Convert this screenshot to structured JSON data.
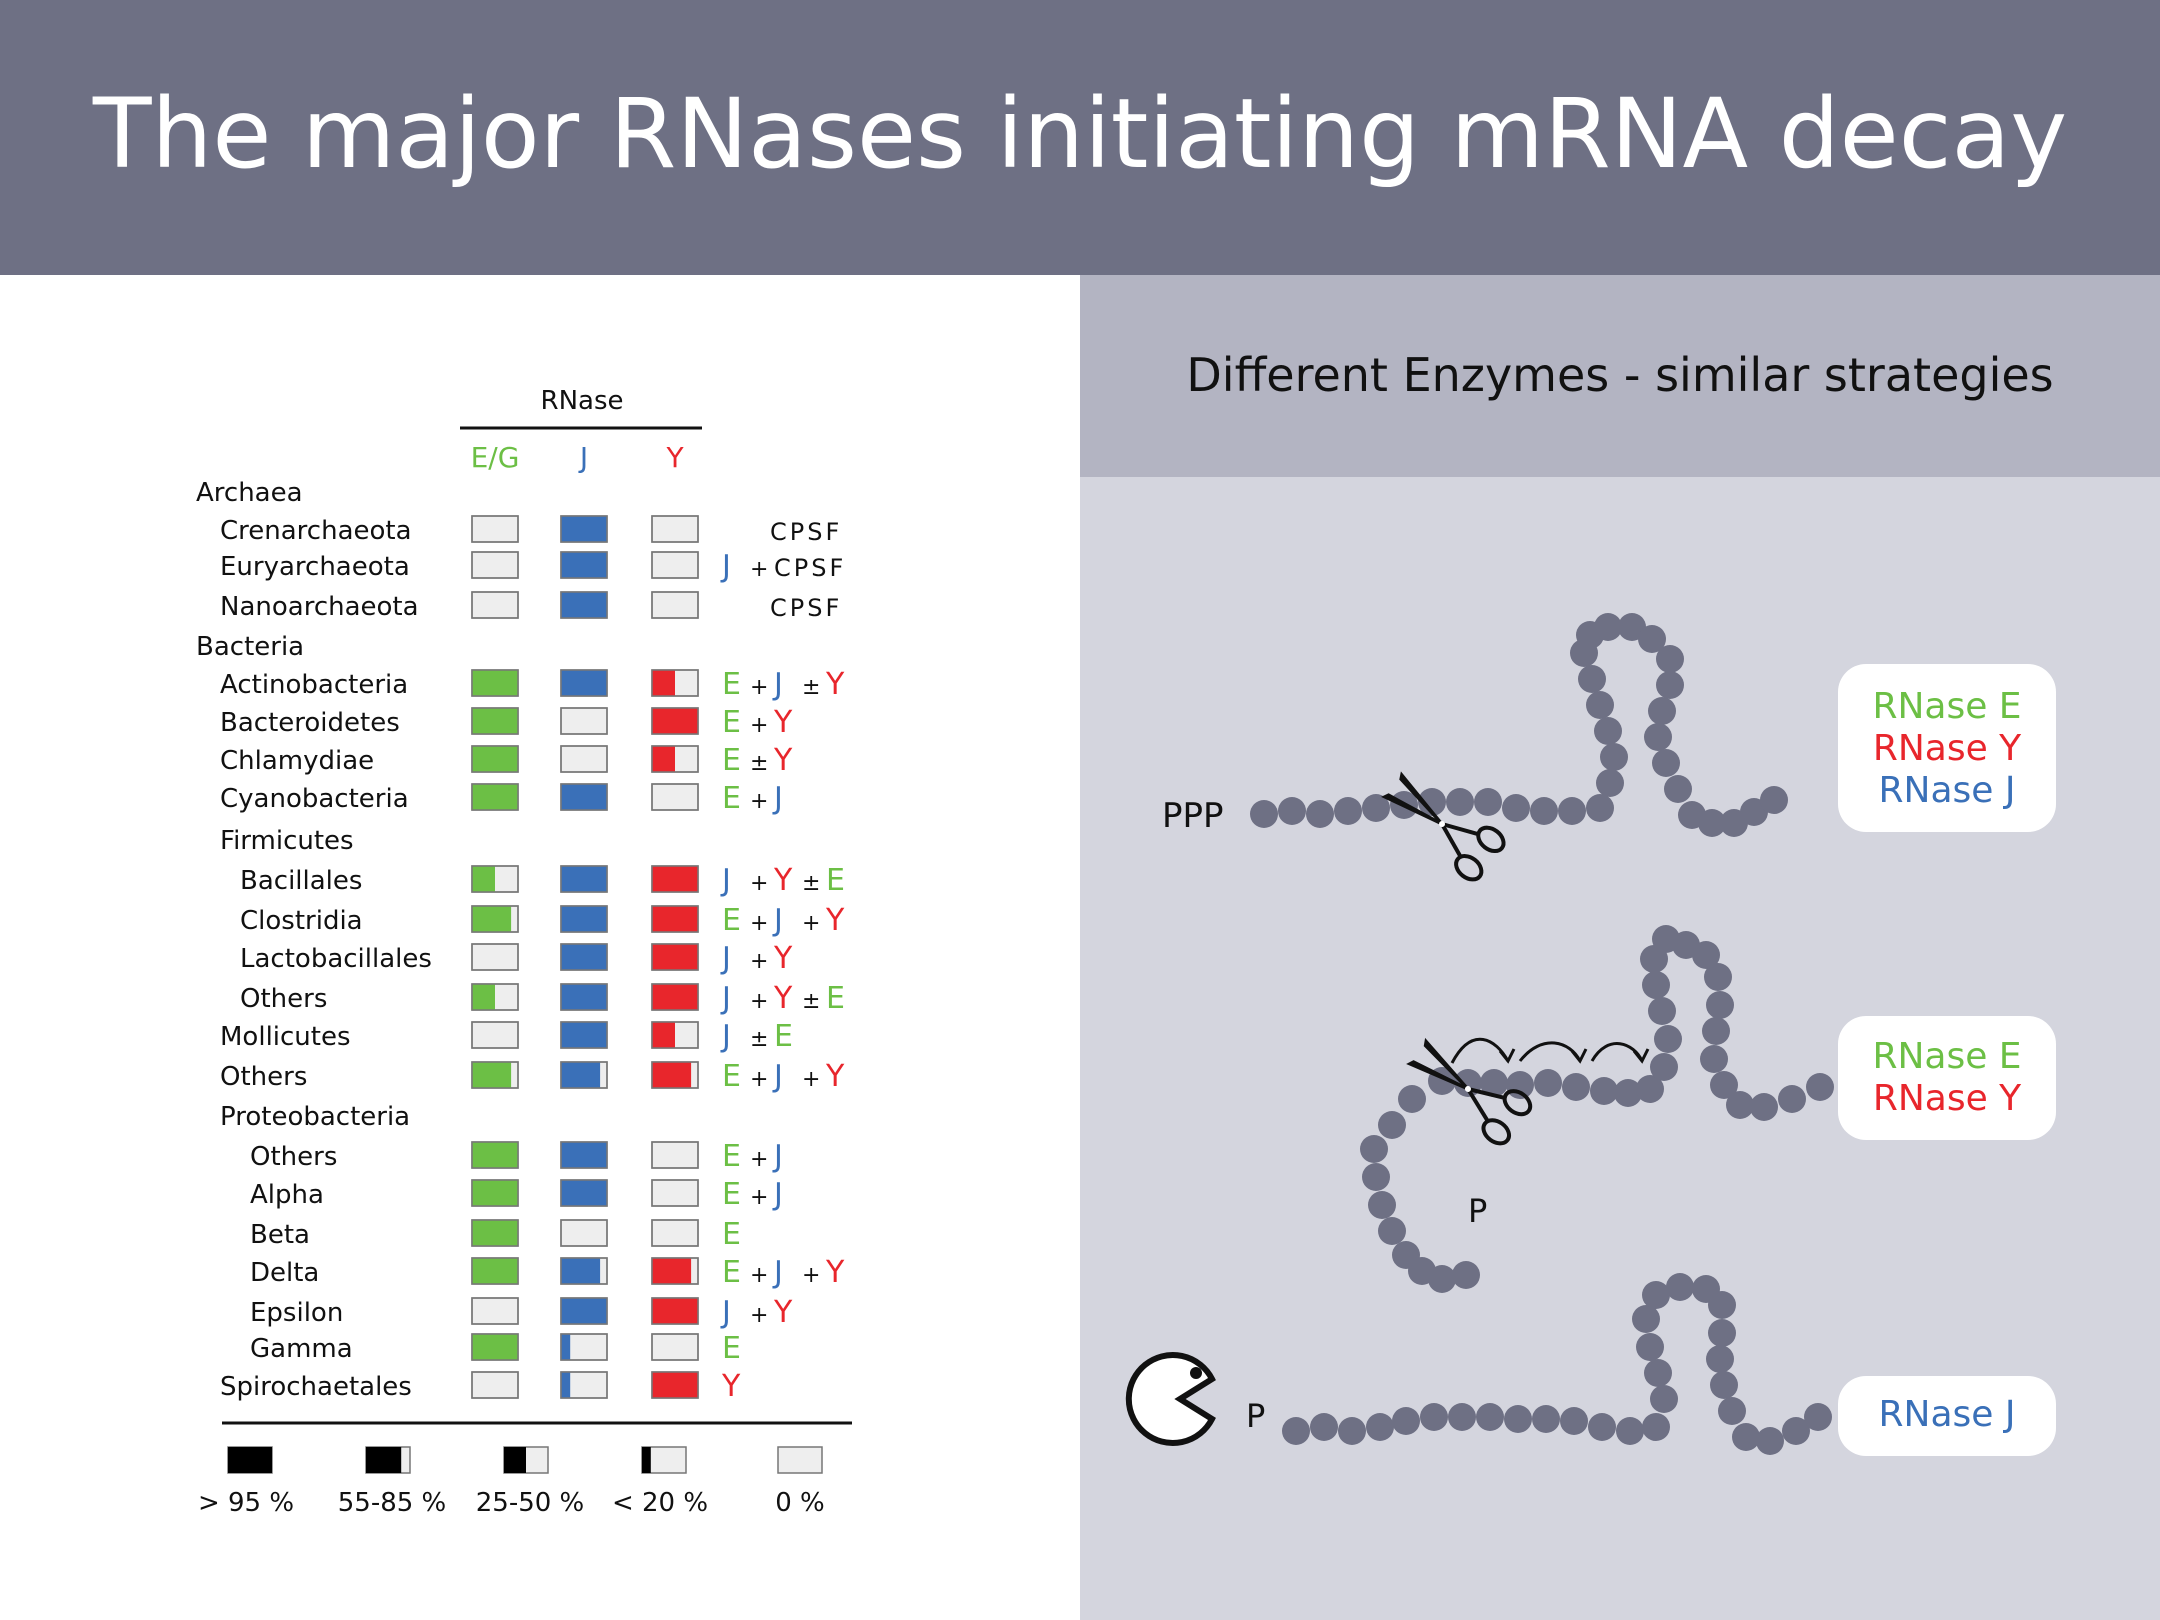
{
  "title": "The major RNases initiating mRNA decay",
  "subtitle": "Different Enzymes - similar strategies",
  "colors": {
    "green": "#6cbf45",
    "blue": "#3a70b8",
    "red": "#e8262c",
    "empty": "#eeeeee",
    "bead": "#6e7084",
    "header": "#6e7084"
  },
  "table": {
    "header": "RNase",
    "columns": [
      {
        "label": "E/G",
        "color": "#6cbf45"
      },
      {
        "label": "J",
        "color": "#3a70b8"
      },
      {
        "label": "Y",
        "color": "#e8262c"
      }
    ],
    "rows": [
      {
        "label": "Archaea",
        "indent": 0,
        "group": true
      },
      {
        "label": "Crenarchaeota",
        "indent": 1,
        "fills": [
          0,
          1,
          0
        ],
        "notes": [
          {
            "t": "CPSF",
            "c": "k"
          }
        ]
      },
      {
        "label": "Euryarchaeota",
        "indent": 1,
        "fills": [
          0,
          1,
          0
        ],
        "notes": [
          {
            "t": "J",
            "c": "b"
          },
          {
            "t": "+",
            "c": "op"
          },
          {
            "t": "CPSF",
            "c": "k"
          }
        ]
      },
      {
        "label": "Nanoarchaeota",
        "indent": 1,
        "fills": [
          0,
          1,
          0
        ],
        "notes": [
          {
            "t": "CPSF",
            "c": "k"
          }
        ]
      },
      {
        "label": "Bacteria",
        "indent": 0,
        "group": true
      },
      {
        "label": "Actinobacteria",
        "indent": 1,
        "fills": [
          1,
          1,
          0.5
        ],
        "notes": [
          {
            "t": "E",
            "c": "g"
          },
          {
            "t": "+",
            "c": "op"
          },
          {
            "t": "J",
            "c": "b"
          },
          {
            "t": "±",
            "c": "op"
          },
          {
            "t": "Y",
            "c": "r"
          }
        ]
      },
      {
        "label": "Bacteroidetes",
        "indent": 1,
        "fills": [
          1,
          0,
          1
        ],
        "notes": [
          {
            "t": "E",
            "c": "g"
          },
          {
            "t": "+",
            "c": "op"
          },
          {
            "t": "Y",
            "c": "r"
          }
        ]
      },
      {
        "label": "Chlamydiae",
        "indent": 1,
        "fills": [
          1,
          0,
          0.5
        ],
        "notes": [
          {
            "t": "E",
            "c": "g"
          },
          {
            "t": "±",
            "c": "op"
          },
          {
            "t": "Y",
            "c": "r"
          }
        ]
      },
      {
        "label": "Cyanobacteria",
        "indent": 1,
        "fills": [
          1,
          1,
          0
        ],
        "notes": [
          {
            "t": "E",
            "c": "g"
          },
          {
            "t": "+",
            "c": "op"
          },
          {
            "t": "J",
            "c": "b"
          }
        ]
      },
      {
        "label": "Firmicutes",
        "indent": 1,
        "group": true
      },
      {
        "label": "Bacillales",
        "indent": 2,
        "fills": [
          0.5,
          1,
          1
        ],
        "notes": [
          {
            "t": "J",
            "c": "b"
          },
          {
            "t": "+",
            "c": "op"
          },
          {
            "t": "Y",
            "c": "r"
          },
          {
            "t": "±",
            "c": "op"
          },
          {
            "t": "E",
            "c": "g"
          }
        ]
      },
      {
        "label": "Clostridia",
        "indent": 2,
        "fills": [
          0.85,
          1,
          1
        ],
        "notes": [
          {
            "t": "E",
            "c": "g"
          },
          {
            "t": "+",
            "c": "op"
          },
          {
            "t": "J",
            "c": "b"
          },
          {
            "t": "+",
            "c": "op"
          },
          {
            "t": "Y",
            "c": "r"
          }
        ]
      },
      {
        "label": "Lactobacillales",
        "indent": 2,
        "fills": [
          0,
          1,
          1
        ],
        "notes": [
          {
            "t": "J",
            "c": "b"
          },
          {
            "t": "+",
            "c": "op"
          },
          {
            "t": "Y",
            "c": "r"
          }
        ]
      },
      {
        "label": "Others",
        "indent": 2,
        "fills": [
          0.5,
          1,
          1
        ],
        "notes": [
          {
            "t": "J",
            "c": "b"
          },
          {
            "t": "+",
            "c": "op"
          },
          {
            "t": "Y",
            "c": "r"
          },
          {
            "t": "±",
            "c": "op"
          },
          {
            "t": "E",
            "c": "g"
          }
        ]
      },
      {
        "label": "Mollicutes",
        "indent": 1,
        "fills": [
          0,
          1,
          0.5
        ],
        "notes": [
          {
            "t": "J",
            "c": "b"
          },
          {
            "t": "±",
            "c": "op"
          },
          {
            "t": "E",
            "c": "g"
          }
        ]
      },
      {
        "label": "Others",
        "indent": 1,
        "fills": [
          0.85,
          0.85,
          0.85
        ],
        "notes": [
          {
            "t": "E",
            "c": "g"
          },
          {
            "t": "+",
            "c": "op"
          },
          {
            "t": "J",
            "c": "b"
          },
          {
            "t": "+",
            "c": "op"
          },
          {
            "t": "Y",
            "c": "r"
          }
        ]
      },
      {
        "label": "Proteobacteria",
        "indent": 1,
        "group": true
      },
      {
        "label": "Others",
        "indent": 3,
        "fills": [
          1,
          1,
          0
        ],
        "notes": [
          {
            "t": "E",
            "c": "g"
          },
          {
            "t": "+",
            "c": "op"
          },
          {
            "t": "J",
            "c": "b"
          }
        ]
      },
      {
        "label": "Alpha",
        "indent": 3,
        "fills": [
          1,
          1,
          0
        ],
        "notes": [
          {
            "t": "E",
            "c": "g"
          },
          {
            "t": "+",
            "c": "op"
          },
          {
            "t": "J",
            "c": "b"
          }
        ]
      },
      {
        "label": "Beta",
        "indent": 3,
        "fills": [
          1,
          0,
          0
        ],
        "notes": [
          {
            "t": "E",
            "c": "g"
          }
        ]
      },
      {
        "label": "Delta",
        "indent": 3,
        "fills": [
          1,
          0.85,
          0.85
        ],
        "notes": [
          {
            "t": "E",
            "c": "g"
          },
          {
            "t": "+",
            "c": "op"
          },
          {
            "t": "J",
            "c": "b"
          },
          {
            "t": "+",
            "c": "op"
          },
          {
            "t": "Y",
            "c": "r"
          }
        ]
      },
      {
        "label": "Epsilon",
        "indent": 3,
        "fills": [
          0,
          1,
          1
        ],
        "notes": [
          {
            "t": "J",
            "c": "b"
          },
          {
            "t": "+",
            "c": "op"
          },
          {
            "t": "Y",
            "c": "r"
          }
        ]
      },
      {
        "label": "Gamma",
        "indent": 3,
        "fills": [
          1,
          0.2,
          0
        ],
        "notes": [
          {
            "t": "E",
            "c": "g"
          }
        ]
      },
      {
        "label": "Spirochaetales",
        "indent": 1,
        "fills": [
          0,
          0.2,
          1
        ],
        "notes": [
          {
            "t": "Y",
            "c": "r"
          }
        ]
      }
    ],
    "key": [
      {
        "label": "> 95 %",
        "fill": 1
      },
      {
        "label": "55-85 %",
        "fill": 0.8
      },
      {
        "label": "25-50 %",
        "fill": 0.5
      },
      {
        "label": "< 20 %",
        "fill": 0.2
      },
      {
        "label": "0 %",
        "fill": 0
      }
    ]
  },
  "scenarios": [
    {
      "end_label": "PPP",
      "legend": [
        {
          "text": "RNase E",
          "color": "#6cbf45"
        },
        {
          "text": "RNase Y",
          "color": "#e8262c"
        },
        {
          "text": "RNase J",
          "color": "#3a70b8"
        }
      ]
    },
    {
      "end_label": "P",
      "legend": [
        {
          "text": "RNase E",
          "color": "#6cbf45"
        },
        {
          "text": "RNase Y",
          "color": "#e8262c"
        }
      ]
    },
    {
      "end_label": "P",
      "legend": [
        {
          "text": "RNase J",
          "color": "#3a70b8"
        }
      ]
    }
  ]
}
